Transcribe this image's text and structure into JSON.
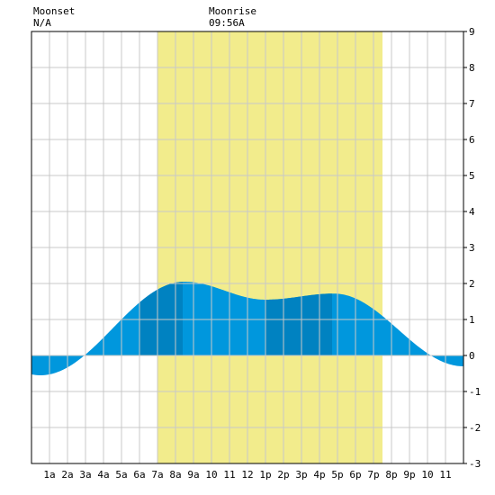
{
  "moonset": {
    "label": "Moonset",
    "value": "N/A"
  },
  "moonrise": {
    "label": "Moonrise",
    "value": "09:56A"
  },
  "colors": {
    "daylight": "#f2ec8c",
    "tide_light": "#0097dd",
    "tide_dark": "#0082c1",
    "grid": "#c8c8c8",
    "axis": "#000000"
  },
  "chart_data": {
    "type": "area",
    "title": "",
    "xlabel": "",
    "ylabel": "",
    "xlim": [
      0,
      24
    ],
    "ylim": [
      -3,
      9
    ],
    "x_ticks": [
      1,
      2,
      3,
      4,
      5,
      6,
      7,
      8,
      9,
      10,
      11,
      12,
      13,
      14,
      15,
      16,
      17,
      18,
      19,
      20,
      21,
      22,
      23
    ],
    "x_tick_labels": [
      "1a",
      "2a",
      "3a",
      "4a",
      "5a",
      "6a",
      "7a",
      "8a",
      "9a",
      "10",
      "11",
      "12",
      "1p",
      "2p",
      "3p",
      "4p",
      "5p",
      "6p",
      "7p",
      "8p",
      "9p",
      "10",
      "11"
    ],
    "y_ticks": [
      -3,
      -2,
      -1,
      0,
      1,
      2,
      3,
      4,
      5,
      6,
      7,
      8,
      9
    ],
    "y_tick_labels": [
      "-3",
      "-2",
      "-1",
      "0",
      "1",
      "2",
      "3",
      "4",
      "5",
      "6",
      "7",
      "8",
      "9"
    ],
    "grid": true,
    "daylight": [
      7.0,
      19.5
    ],
    "tide_extremes": [
      {
        "type": "low",
        "x": 0.5,
        "y": -0.55
      },
      {
        "type": "high",
        "x": 8.5,
        "y": 2.05
      },
      {
        "type": "low",
        "x": 13.0,
        "y": 1.55
      },
      {
        "type": "high",
        "x": 16.8,
        "y": 1.72
      },
      {
        "type": "low",
        "x": 24.0,
        "y": -0.3
      }
    ],
    "shade_bands": [
      [
        6.0,
        8.4
      ],
      [
        13.0,
        16.7
      ]
    ]
  }
}
